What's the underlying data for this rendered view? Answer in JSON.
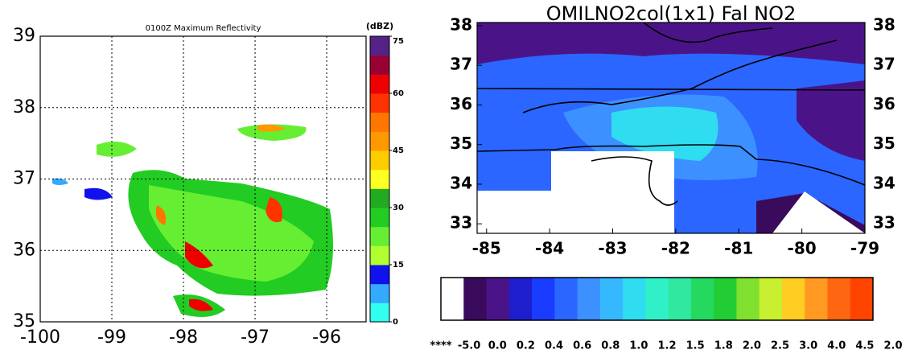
{
  "chart_data": [
    {
      "type": "map",
      "title": "0100Z Maximum Reflectivity",
      "xlim": [
        -100,
        -95.45
      ],
      "xticks": [
        -100,
        -99,
        -98,
        -97,
        -96
      ],
      "ylim": [
        35,
        39
      ],
      "yticks": [
        35,
        36,
        37,
        38,
        39
      ],
      "grid": true,
      "colorbar": {
        "label": "(dBZ)",
        "lim": [
          0,
          75
        ],
        "ticks": [
          0,
          15,
          30,
          45,
          60,
          75
        ],
        "colors": [
          "#33ffee",
          "#33aaff",
          "#1111ee",
          "#b0ff30",
          "#66ee33",
          "#22cc22",
          "#22aa22",
          "#ffff22",
          "#ffcc00",
          "#ff9900",
          "#ff7700",
          "#ff3300",
          "#ee0000",
          "#990033",
          "#552288"
        ]
      }
    },
    {
      "type": "map",
      "title": "OMILNO2col(1x1) Fal NO2",
      "xlim": [
        -85.15,
        -79
      ],
      "xticks": [
        -85,
        -84,
        -83,
        -82,
        -81,
        -80,
        -79
      ],
      "ylim": [
        32.76,
        38.08
      ],
      "yticks": [
        33,
        34,
        35,
        36,
        37,
        38
      ],
      "colorbar": {
        "labels": [
          "****",
          "-5.0",
          "0.0",
          "0.2",
          "0.4",
          "0.6",
          "0.8",
          "1.0",
          "1.2",
          "1.5",
          "1.8",
          "2.0",
          "2.5",
          "3.0",
          "4.0",
          "4.5",
          "2.0"
        ],
        "colors": [
          "#ffffff",
          "#3a0a5c",
          "#4a1488",
          "#1e1ecc",
          "#1a3cff",
          "#2a66ff",
          "#3c90ff",
          "#36b8ff",
          "#30dcf0",
          "#30f0c8",
          "#30e8a0",
          "#24d860",
          "#22cc33",
          "#80e030",
          "#c8f030",
          "#ffcc22",
          "#ff9922",
          "#ff6611",
          "#ff4400"
        ]
      }
    }
  ]
}
